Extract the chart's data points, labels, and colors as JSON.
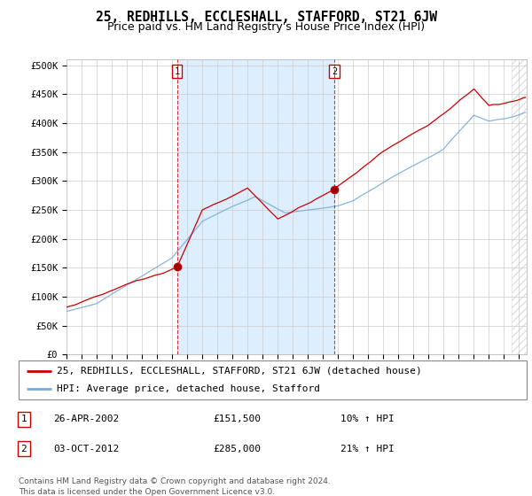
{
  "title": "25, REDHILLS, ECCLESHALL, STAFFORD, ST21 6JW",
  "subtitle": "Price paid vs. HM Land Registry's House Price Index (HPI)",
  "yticks": [
    0,
    50000,
    100000,
    150000,
    200000,
    250000,
    300000,
    350000,
    400000,
    450000,
    500000
  ],
  "ytick_labels": [
    "£0",
    "£50K",
    "£100K",
    "£150K",
    "£200K",
    "£250K",
    "£300K",
    "£350K",
    "£400K",
    "£450K",
    "£500K"
  ],
  "ylim": [
    0,
    510000
  ],
  "xlim_start": 1995.0,
  "xlim_end": 2025.5,
  "xtick_years": [
    1995,
    1996,
    1997,
    1998,
    1999,
    2000,
    2001,
    2002,
    2003,
    2004,
    2005,
    2006,
    2007,
    2008,
    2009,
    2010,
    2011,
    2012,
    2013,
    2014,
    2015,
    2016,
    2017,
    2018,
    2019,
    2020,
    2021,
    2022,
    2023,
    2024,
    2025
  ],
  "background_color": "#ffffff",
  "plot_bg_color": "#ffffff",
  "grid_color": "#cccccc",
  "red_line_color": "#cc0000",
  "blue_line_color": "#7aaddb",
  "shade_color": "#ddeeff",
  "marker1_x": 2002.32,
  "marker1_y": 151500,
  "marker2_x": 2012.75,
  "marker2_y": 285000,
  "vline1_x": 2002.32,
  "vline2_x": 2012.75,
  "legend_label_red": "25, REDHILLS, ECCLESHALL, STAFFORD, ST21 6JW (detached house)",
  "legend_label_blue": "HPI: Average price, detached house, Stafford",
  "table_rows": [
    {
      "num": "1",
      "date": "26-APR-2002",
      "price": "£151,500",
      "hpi": "10% ↑ HPI"
    },
    {
      "num": "2",
      "date": "03-OCT-2012",
      "price": "£285,000",
      "hpi": "21% ↑ HPI"
    }
  ],
  "footnote": "Contains HM Land Registry data © Crown copyright and database right 2024.\nThis data is licensed under the Open Government Licence v3.0.",
  "title_fontsize": 10.5,
  "subtitle_fontsize": 9,
  "tick_fontsize": 7.5,
  "legend_fontsize": 8,
  "table_fontsize": 8,
  "footnote_fontsize": 6.5
}
